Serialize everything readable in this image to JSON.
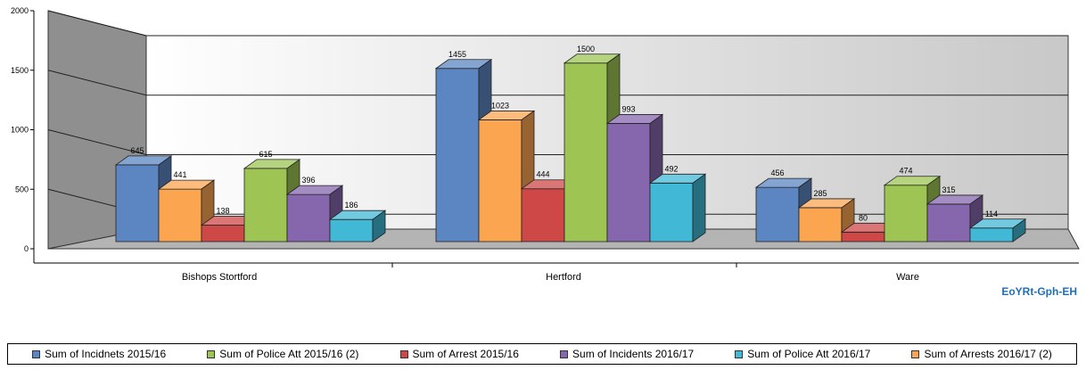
{
  "chart_data": {
    "type": "bar",
    "style": "3d-clustered-column",
    "categories": [
      "Bishops Stortford",
      "Hertford",
      "Ware"
    ],
    "series": [
      {
        "name": "Sum of Incidnets 2015/16",
        "color": "#5b86c2",
        "values": [
          645,
          1455,
          456
        ]
      },
      {
        "name": "Sum of Arrests 2016/17 (2)",
        "color": "#fba551",
        "values": [
          441,
          1023,
          285
        ]
      },
      {
        "name": "Sum of Arrest 2015/16",
        "color": "#cd4847",
        "values": [
          138,
          444,
          80
        ]
      },
      {
        "name": "Sum of Police Att 2015/16 (2)",
        "color": "#9ec554",
        "values": [
          615,
          1500,
          474
        ]
      },
      {
        "name": "Sum of Incidents 2016/17",
        "color": "#8667ad",
        "values": [
          396,
          993,
          315
        ]
      },
      {
        "name": "Sum of Police Att 2016/17",
        "color": "#41b8d6",
        "values": [
          186,
          492,
          114
        ]
      }
    ],
    "yticks": [
      "0",
      "500",
      "1000",
      "1500",
      "2000"
    ],
    "ylim": [
      0,
      2000
    ],
    "legend_position": "bottom",
    "grid": true
  },
  "legend_order": [
    0,
    3,
    2,
    4,
    5,
    1
  ],
  "watermark": "EoYRt-Gph-EH"
}
